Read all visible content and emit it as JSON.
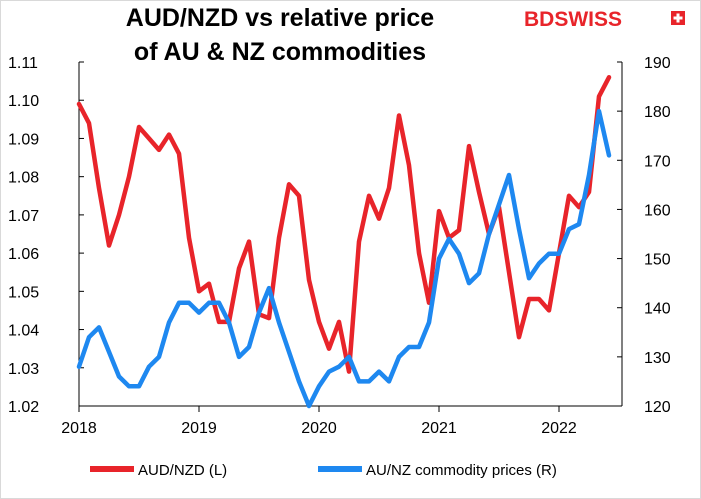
{
  "title_line1": "AUD/NZD vs relative price",
  "title_line2": "of AU & NZ commodities",
  "logo_text": "BDSWISS",
  "colors": {
    "red": "#e8242a",
    "blue": "#1e88f0"
  },
  "chart_data": {
    "type": "line",
    "x_ticks": [
      "2018",
      "2019",
      "2020",
      "2021",
      "2022"
    ],
    "left_axis": {
      "ylim": [
        1.02,
        1.11
      ],
      "ticks": [
        "1.02",
        "1.03",
        "1.04",
        "1.05",
        "1.06",
        "1.07",
        "1.08",
        "1.09",
        "1.10",
        "1.11"
      ]
    },
    "right_axis": {
      "ylim": [
        120,
        190
      ],
      "ticks": [
        "120",
        "130",
        "140",
        "150",
        "160",
        "170",
        "180",
        "190"
      ]
    },
    "series": [
      {
        "name": "AUD/NZD (L)",
        "axis": "left",
        "color": "#e8242a",
        "x": [
          2018.0,
          2018.083,
          2018.167,
          2018.25,
          2018.333,
          2018.417,
          2018.5,
          2018.583,
          2018.667,
          2018.75,
          2018.833,
          2018.917,
          2019.0,
          2019.083,
          2019.167,
          2019.25,
          2019.333,
          2019.417,
          2019.5,
          2019.583,
          2019.667,
          2019.75,
          2019.833,
          2019.917,
          2020.0,
          2020.083,
          2020.167,
          2020.25,
          2020.333,
          2020.417,
          2020.5,
          2020.583,
          2020.667,
          2020.75,
          2020.833,
          2020.917,
          2021.0,
          2021.083,
          2021.167,
          2021.25,
          2021.333,
          2021.417,
          2021.5,
          2021.583,
          2021.667,
          2021.75,
          2021.833,
          2021.917,
          2022.0,
          2022.083,
          2022.167,
          2022.25,
          2022.333,
          2022.417
        ],
        "values": [
          1.099,
          1.094,
          1.077,
          1.062,
          1.07,
          1.08,
          1.093,
          1.09,
          1.087,
          1.091,
          1.086,
          1.064,
          1.05,
          1.052,
          1.042,
          1.042,
          1.056,
          1.063,
          1.044,
          1.043,
          1.064,
          1.078,
          1.075,
          1.053,
          1.042,
          1.035,
          1.042,
          1.029,
          1.063,
          1.075,
          1.069,
          1.077,
          1.096,
          1.083,
          1.06,
          1.047,
          1.071,
          1.064,
          1.066,
          1.088,
          1.076,
          1.065,
          1.072,
          1.055,
          1.038,
          1.048,
          1.048,
          1.045,
          1.06,
          1.075,
          1.072,
          1.076,
          1.101,
          1.106
        ]
      },
      {
        "name": "AU/NZ commodity prices (R)",
        "axis": "right",
        "color": "#1e88f0",
        "x": [
          2018.0,
          2018.083,
          2018.167,
          2018.25,
          2018.333,
          2018.417,
          2018.5,
          2018.583,
          2018.667,
          2018.75,
          2018.833,
          2018.917,
          2019.0,
          2019.083,
          2019.167,
          2019.25,
          2019.333,
          2019.417,
          2019.5,
          2019.583,
          2019.667,
          2019.75,
          2019.833,
          2019.917,
          2020.0,
          2020.083,
          2020.167,
          2020.25,
          2020.333,
          2020.417,
          2020.5,
          2020.583,
          2020.667,
          2020.75,
          2020.833,
          2020.917,
          2021.0,
          2021.083,
          2021.167,
          2021.25,
          2021.333,
          2021.417,
          2021.5,
          2021.583,
          2021.667,
          2021.75,
          2021.833,
          2021.917,
          2022.0,
          2022.083,
          2022.167,
          2022.25,
          2022.333,
          2022.417
        ],
        "values": [
          128,
          134,
          136,
          131,
          126,
          124,
          124,
          128,
          130,
          137,
          141,
          141,
          139,
          141,
          141,
          137,
          130,
          132,
          139,
          144,
          137,
          131,
          125,
          120,
          124,
          127,
          128,
          130,
          125,
          125,
          127,
          125,
          130,
          132,
          132,
          137,
          150,
          154,
          151,
          145,
          147,
          155,
          161,
          167,
          156,
          146,
          149,
          151,
          151,
          156,
          157,
          167,
          180,
          171
        ]
      }
    ],
    "legend": {
      "placement": "bottom"
    }
  }
}
